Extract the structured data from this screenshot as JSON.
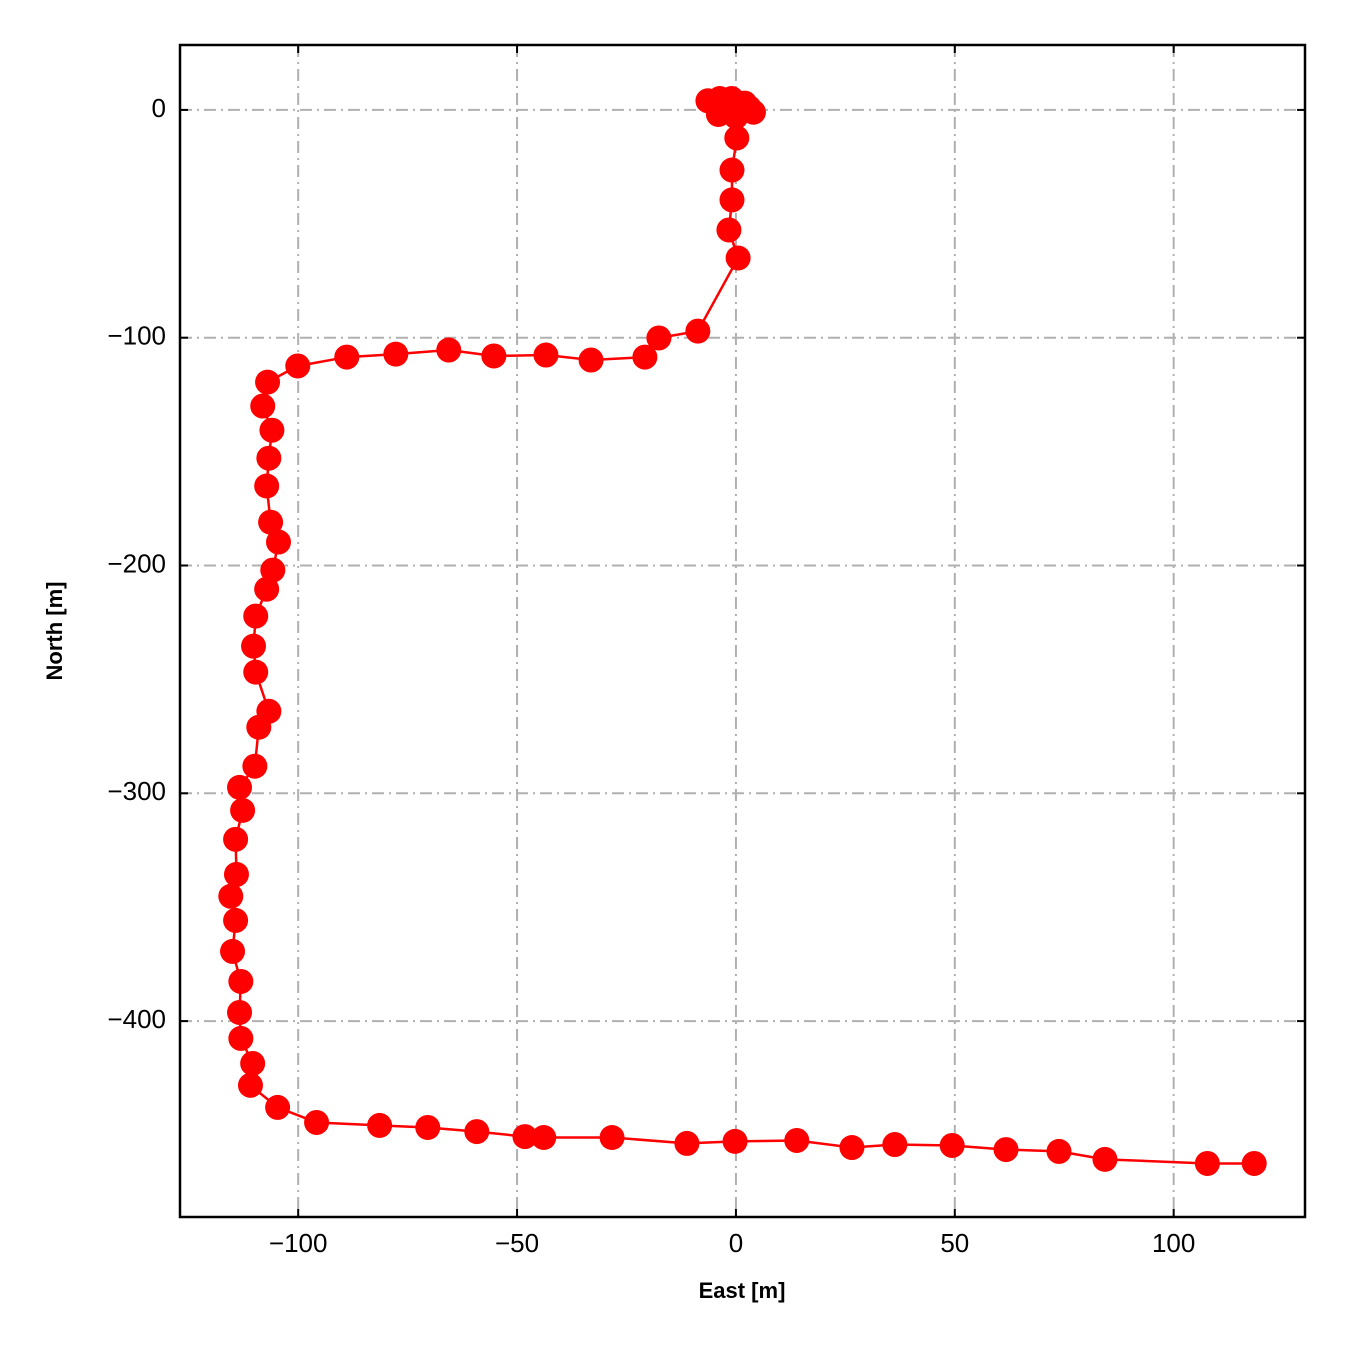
{
  "chart_data": {
    "type": "line",
    "xlabel": "East [m]",
    "ylabel": "North [m]",
    "x": [
      -6.4,
      -3.7,
      -1,
      2,
      4,
      0,
      -4,
      -2,
      1,
      3,
      0.2,
      -0.9,
      -0.9,
      -1.6,
      0.5,
      -8.7,
      -17.6,
      -20.8,
      -33.1,
      -43.4,
      -55.3,
      -65.6,
      -77.7,
      -88.9,
      -100.1,
      -107,
      -108.1,
      -106,
      -106.7,
      -107.2,
      -106.3,
      -104.5,
      -105.8,
      -107.2,
      -109.7,
      -110.2,
      -109.7,
      -106.7,
      -109,
      -109.9,
      -113.4,
      -112.7,
      -114.3,
      -114.1,
      -115.4,
      -114.3,
      -115,
      -113.1,
      -113.4,
      -113.1,
      -110.4,
      -110.9,
      -104.7,
      -95.8,
      -81.4,
      -70.4,
      -59.2,
      -48.2,
      -43.9,
      -28.3,
      -11.2,
      -0.2,
      13.9,
      26.5,
      36.3,
      49.4,
      61.7,
      73.8,
      84.3,
      107.7,
      118.4
    ],
    "series": [
      {
        "color": "#ff0000",
        "values": [
          4,
          5,
          5,
          3,
          -1,
          -3,
          -2,
          1,
          0,
          1,
          -12.3,
          -26.4,
          -39.5,
          -52.7,
          -65,
          -97.1,
          -100.1,
          -108.5,
          -109.8,
          -107.6,
          -108,
          -105.4,
          -107.2,
          -108.5,
          -112.4,
          -119.5,
          -130,
          -140.6,
          -152.9,
          -165.1,
          -181,
          -189.7,
          -202,
          -210.4,
          -222.2,
          -235.4,
          -246.8,
          -264,
          -271,
          -288.1,
          -297.4,
          -307.5,
          -320.2,
          -335.6,
          -345.2,
          -355.8,
          -369.4,
          -382.6,
          -396.2,
          -407.6,
          -418.6,
          -428.2,
          -437.9,
          -444.5,
          -445.8,
          -446.7,
          -448.5,
          -450.7,
          -451.1,
          -451.1,
          -453.7,
          -452.8,
          -452.4,
          -455.5,
          -454.2,
          -454.6,
          -456.4,
          -457.2,
          -460.7,
          -462.5,
          -462.5
        ]
      }
    ],
    "xlim": [
      -127,
      130
    ],
    "ylim": [
      -486,
      28.5
    ],
    "xticks": [
      {
        "value": -100,
        "label": "−100"
      },
      {
        "value": -50,
        "label": "−50"
      },
      0,
      50,
      100
    ],
    "yticks": [
      0,
      {
        "value": -100,
        "label": "−100"
      },
      {
        "value": -200,
        "label": "−200"
      },
      {
        "value": -300,
        "label": "−300"
      },
      {
        "value": -400,
        "label": "−400"
      }
    ],
    "grid": true
  }
}
